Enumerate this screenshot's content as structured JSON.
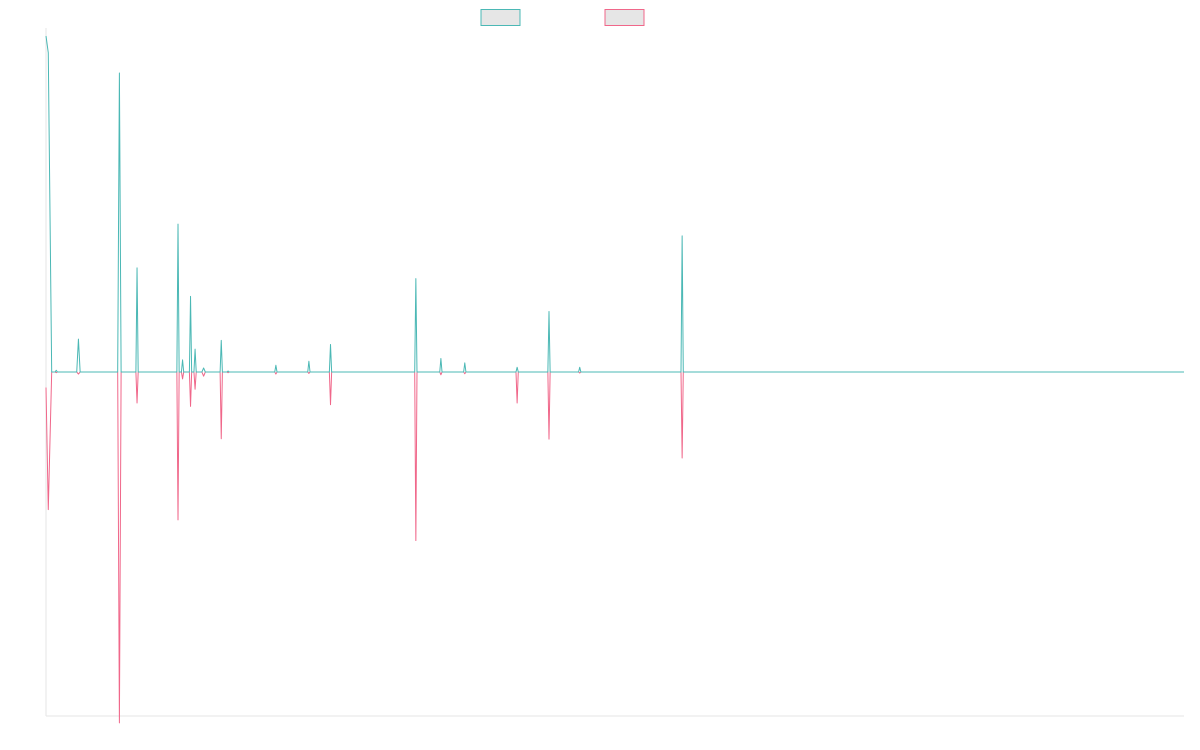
{
  "chart_data": {
    "type": "line",
    "ylim": [
      -1,
      1
    ],
    "xlim": [
      0,
      1000
    ],
    "grid": false,
    "legend": {
      "placement": "top-center"
    },
    "series": [
      {
        "color": "#4bb8b5",
        "points": [
          [
            0,
            1.0
          ],
          [
            2,
            0.95
          ],
          [
            5,
            0.0
          ],
          [
            8,
            0.0
          ],
          [
            9,
            0.005
          ],
          [
            10,
            0.0
          ],
          [
            27,
            0.0
          ],
          [
            28.5,
            0.098
          ],
          [
            30,
            0.0
          ],
          [
            63,
            0.0
          ],
          [
            64.5,
            0.89
          ],
          [
            66,
            0.0
          ],
          [
            79,
            0.0
          ],
          [
            80,
            0.31
          ],
          [
            81,
            0.0
          ],
          [
            115,
            0.0
          ],
          [
            116,
            0.44
          ],
          [
            117,
            0.0
          ],
          [
            119,
            0.0
          ],
          [
            120,
            0.036
          ],
          [
            121,
            0.0
          ],
          [
            126,
            0.0
          ],
          [
            127,
            0.225
          ],
          [
            128,
            0.0
          ],
          [
            130,
            0.0
          ],
          [
            131,
            0.068
          ],
          [
            132,
            0.0
          ],
          [
            137,
            0.0
          ],
          [
            138.5,
            0.012
          ],
          [
            140,
            0.0
          ],
          [
            153,
            0.0
          ],
          [
            154,
            0.094
          ],
          [
            155,
            0.0
          ],
          [
            159,
            0.0
          ],
          [
            160,
            0.003
          ],
          [
            161,
            0.0
          ],
          [
            201,
            0.0
          ],
          [
            202,
            0.02
          ],
          [
            203,
            0.0
          ],
          [
            230,
            0.0
          ],
          [
            231,
            0.032
          ],
          [
            232,
            0.0
          ],
          [
            249,
            0.0
          ],
          [
            250,
            0.082
          ],
          [
            251,
            0.0
          ],
          [
            324,
            0.0
          ],
          [
            325,
            0.278
          ],
          [
            326,
            0.0
          ],
          [
            346,
            0.0
          ],
          [
            347,
            0.04
          ],
          [
            348,
            0.0
          ],
          [
            367,
            0.0
          ],
          [
            368,
            0.027
          ],
          [
            369,
            0.0
          ],
          [
            413,
            0.0
          ],
          [
            414,
            0.014
          ],
          [
            415,
            0.0
          ],
          [
            441,
            0.0
          ],
          [
            442,
            0.18
          ],
          [
            443,
            0.0
          ],
          [
            468,
            0.0
          ],
          [
            469,
            0.014
          ],
          [
            470,
            0.0
          ],
          [
            558,
            0.0
          ],
          [
            559,
            0.405
          ],
          [
            560,
            0.0
          ],
          [
            1000,
            0.0
          ]
        ]
      },
      {
        "color": "#f0678a",
        "points": [
          [
            0,
            -0.045
          ],
          [
            2,
            -0.4
          ],
          [
            5,
            0.0
          ],
          [
            8,
            0.0
          ],
          [
            9,
            -0.002
          ],
          [
            10,
            0.0
          ],
          [
            27,
            0.0
          ],
          [
            28.5,
            -0.006
          ],
          [
            30,
            0.0
          ],
          [
            63,
            0.0
          ],
          [
            64.5,
            -1.02
          ],
          [
            66,
            0.0
          ],
          [
            79,
            0.0
          ],
          [
            80,
            -0.09
          ],
          [
            81,
            0.0
          ],
          [
            115,
            0.0
          ],
          [
            116,
            -0.43
          ],
          [
            117,
            0.0
          ],
          [
            119,
            0.0
          ],
          [
            120,
            -0.02
          ],
          [
            121,
            0.0
          ],
          [
            126,
            0.0
          ],
          [
            127,
            -0.1
          ],
          [
            128,
            0.0
          ],
          [
            130,
            0.0
          ],
          [
            131,
            -0.05
          ],
          [
            132,
            0.0
          ],
          [
            137,
            0.0
          ],
          [
            138.5,
            -0.012
          ],
          [
            140,
            0.0
          ],
          [
            153,
            0.0
          ],
          [
            154,
            -0.194
          ],
          [
            155,
            0.0
          ],
          [
            159,
            0.0
          ],
          [
            160,
            -0.002
          ],
          [
            161,
            0.0
          ],
          [
            201,
            0.0
          ],
          [
            202,
            -0.006
          ],
          [
            203,
            0.0
          ],
          [
            230,
            0.0
          ],
          [
            231,
            -0.004
          ],
          [
            232,
            0.0
          ],
          [
            249,
            0.0
          ],
          [
            250,
            -0.095
          ],
          [
            251,
            0.0
          ],
          [
            324,
            0.0
          ],
          [
            325,
            -0.49
          ],
          [
            326,
            0.0
          ],
          [
            346,
            0.0
          ],
          [
            347,
            -0.008
          ],
          [
            348,
            0.0
          ],
          [
            367,
            0.0
          ],
          [
            368,
            -0.005
          ],
          [
            369,
            0.0
          ],
          [
            413,
            0.0
          ],
          [
            414,
            -0.09
          ],
          [
            415,
            0.0
          ],
          [
            441,
            0.0
          ],
          [
            442,
            -0.195
          ],
          [
            443,
            0.0
          ],
          [
            468,
            0.0
          ],
          [
            469,
            -0.003
          ],
          [
            470,
            0.0
          ],
          [
            558,
            0.0
          ],
          [
            559,
            -0.25
          ],
          [
            560,
            0.0
          ],
          [
            1000,
            0.0
          ]
        ]
      }
    ]
  }
}
